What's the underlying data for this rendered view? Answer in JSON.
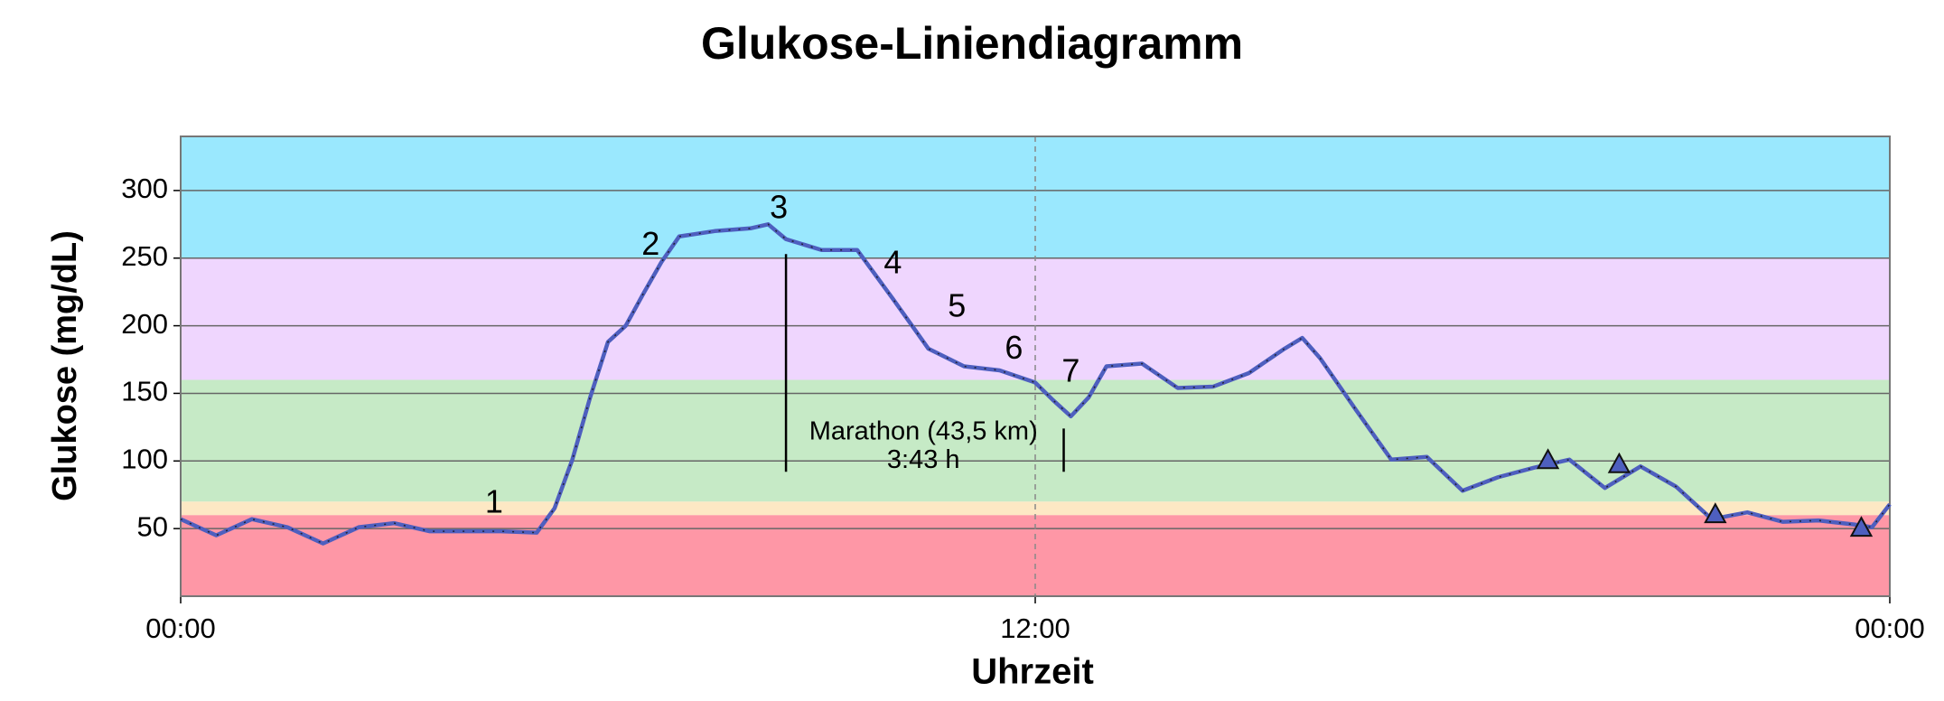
{
  "chart_data": {
    "type": "line",
    "title": "Glukose-Liniendiagramm",
    "xlabel": "Uhrzeit",
    "ylabel": "Glukose (mg/dL)",
    "xlim": [
      0,
      24
    ],
    "ylim": [
      0,
      340
    ],
    "xticks": [
      {
        "value": 0,
        "label": "00:00"
      },
      {
        "value": 12,
        "label": "12:00"
      },
      {
        "value": 24,
        "label": "00:00"
      }
    ],
    "yticks": [
      50,
      100,
      150,
      200,
      250,
      300
    ],
    "grid": true,
    "bands": [
      {
        "from": 0,
        "to": 60,
        "color": "#fe97a6"
      },
      {
        "from": 60,
        "to": 70,
        "color": "#fde8c4"
      },
      {
        "from": 70,
        "to": 160,
        "color": "#c6eac6"
      },
      {
        "from": 160,
        "to": 250,
        "color": "#efd6fe"
      },
      {
        "from": 250,
        "to": 340,
        "color": "#9ae8fe"
      }
    ],
    "series": [
      {
        "color": "#4e5fbf",
        "x": [
          0,
          0.5,
          1,
          1.5,
          2,
          2.5,
          3,
          3.5,
          4,
          4.5,
          5,
          5.25,
          5.5,
          5.75,
          6,
          6.25,
          6.5,
          6.75,
          7,
          7.5,
          8,
          8.25,
          8.5,
          9,
          9.5,
          10,
          10.5,
          11,
          11.5,
          12,
          12.25,
          12.5,
          12.75,
          13,
          13.5,
          14,
          14.5,
          15,
          15.5,
          15.75,
          16,
          16.5,
          17,
          17.5,
          18,
          18.5,
          19,
          19.5,
          20,
          20.5,
          21,
          21.5,
          22,
          22.5,
          23,
          23.5,
          23.75,
          24
        ],
        "values": [
          57,
          45,
          57,
          51,
          39,
          51,
          54,
          48,
          48,
          48,
          47,
          65,
          101,
          147,
          188,
          200,
          224,
          247,
          266,
          270,
          272,
          275,
          264,
          256,
          256,
          220,
          183,
          170,
          167,
          158,
          145,
          133,
          147,
          170,
          172,
          154,
          155,
          165,
          183,
          191,
          176,
          138,
          101,
          103,
          78,
          88,
          95,
          101,
          80,
          96,
          81,
          57,
          62,
          55,
          56,
          53,
          51,
          68
        ]
      }
    ],
    "markers": {
      "x": [
        19.2,
        20.2,
        21.55,
        23.6
      ],
      "y": [
        100,
        97,
        60,
        50
      ],
      "color": "#4e5fbf"
    },
    "annotations": [
      {
        "text": "1",
        "x": 4.4,
        "y": 68
      },
      {
        "text": "2",
        "x": 6.6,
        "y": 259
      },
      {
        "text": "3",
        "x": 8.4,
        "y": 286
      },
      {
        "text": "4",
        "x": 10,
        "y": 245
      },
      {
        "text": "5",
        "x": 10.9,
        "y": 213
      },
      {
        "text": "6",
        "x": 11.7,
        "y": 182
      },
      {
        "text": "7",
        "x": 12.5,
        "y": 165
      },
      {
        "text": "Marathon (43,5 km)",
        "x": 10.43,
        "y": 121
      },
      {
        "text": "3:43 h",
        "x": 10.43,
        "y": 100
      }
    ],
    "event_lines": [
      {
        "x": 8.5,
        "from": 92,
        "to": 253
      },
      {
        "x": 12.4,
        "from": 92,
        "to": 124
      }
    ]
  }
}
